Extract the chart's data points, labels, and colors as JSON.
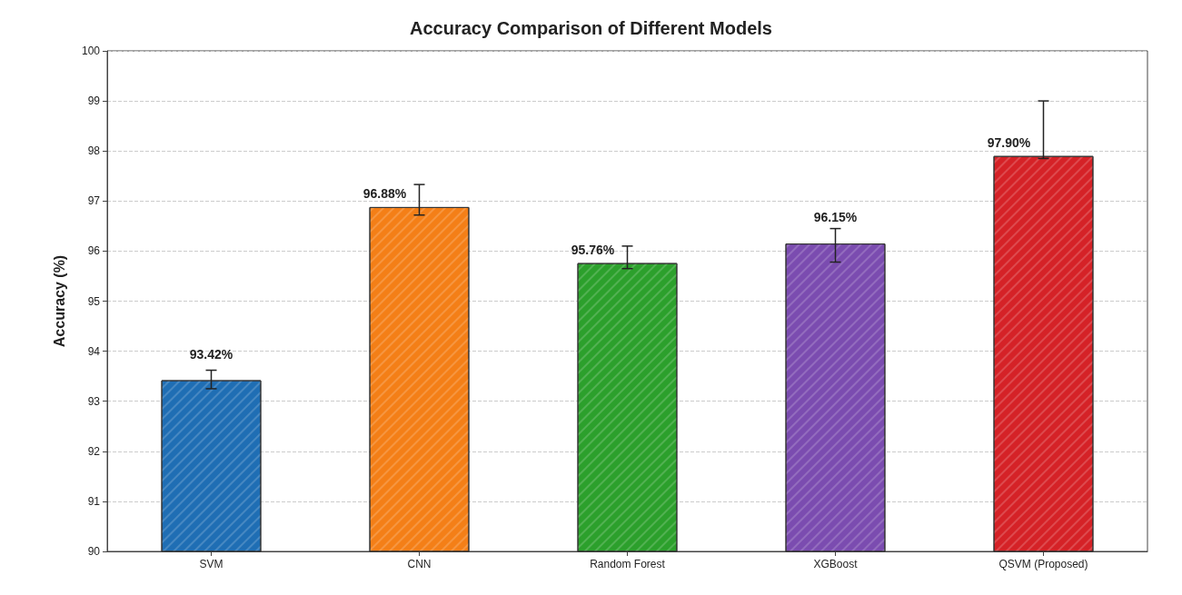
{
  "chart_data": {
    "type": "bar",
    "title": "Accuracy Comparison of Different Models",
    "ylabel": "Accuracy (%)",
    "categories": [
      "SVM",
      "CNN",
      "Random Forest",
      "XGBoost",
      "QSVM (Proposed)"
    ],
    "values": [
      93.42,
      96.88,
      95.76,
      96.15,
      97.9
    ],
    "colors": [
      "#1f6eb4",
      "#f47f17",
      "#2ca02c",
      "#7b4cb0",
      "#d52227"
    ],
    "errors": [
      [
        93.25,
        93.62
      ],
      [
        96.72,
        97.33
      ],
      [
        95.65,
        96.1
      ],
      [
        95.78,
        96.45
      ],
      [
        97.85,
        99.0
      ]
    ],
    "value_labels": [
      "93.42%",
      "96.88%",
      "95.76%",
      "96.15%",
      "97.90%"
    ],
    "ylim": [
      90,
      100
    ],
    "yticks": [
      90,
      91,
      92,
      93,
      94,
      95,
      96,
      97,
      98,
      99,
      100
    ],
    "grid": "y"
  }
}
